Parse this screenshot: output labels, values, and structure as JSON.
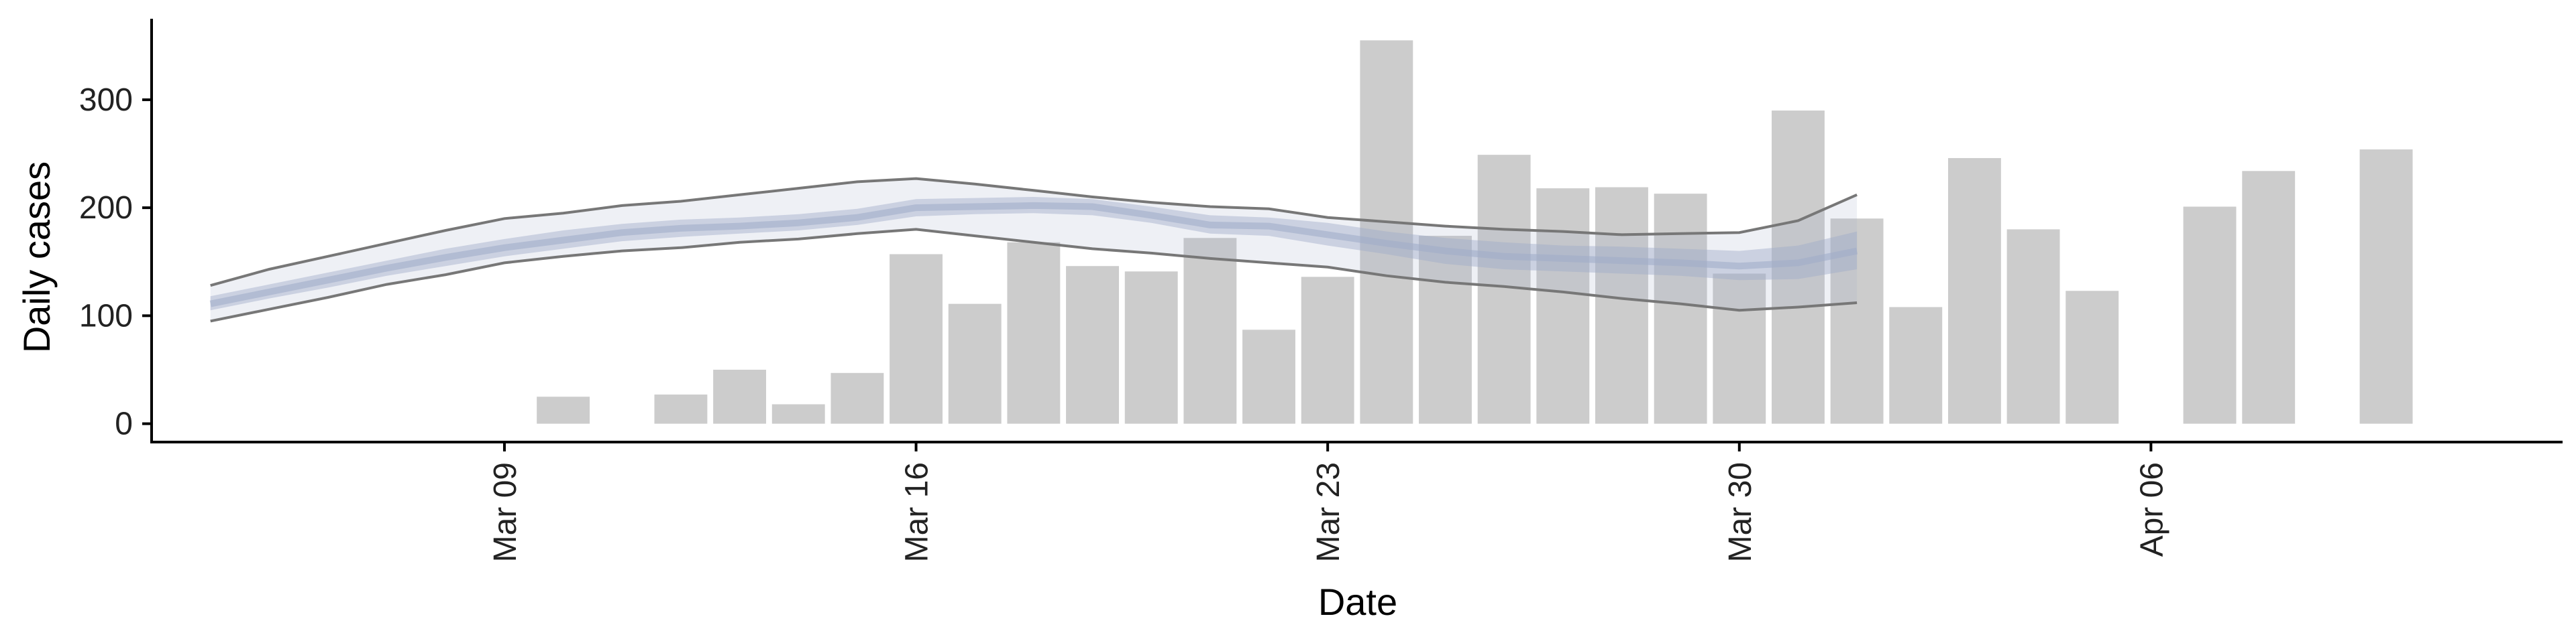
{
  "chart_data": {
    "type": "bar",
    "xlabel": "Date",
    "ylabel": "Daily cases",
    "ylim": [
      -17,
      375
    ],
    "grid": false,
    "legend": "none",
    "y_ticks": [
      0,
      100,
      200,
      300
    ],
    "x_ticks": [
      {
        "date": "2020-03-09",
        "label": "Mar 09"
      },
      {
        "date": "2020-03-16",
        "label": "Mar 16"
      },
      {
        "date": "2020-03-23",
        "label": "Mar 23"
      },
      {
        "date": "2020-03-30",
        "label": "Mar 30"
      },
      {
        "date": "2020-04-06",
        "label": "Apr 06"
      }
    ],
    "xlim": [
      "2020-03-03",
      "2020-04-13"
    ],
    "bars": {
      "name": "Daily cases",
      "color": "#cccccc",
      "data": [
        {
          "date": "2020-03-10",
          "value": 25
        },
        {
          "date": "2020-03-12",
          "value": 27
        },
        {
          "date": "2020-03-13",
          "value": 50
        },
        {
          "date": "2020-03-14",
          "value": 18
        },
        {
          "date": "2020-03-15",
          "value": 47
        },
        {
          "date": "2020-03-16",
          "value": 157
        },
        {
          "date": "2020-03-17",
          "value": 111
        },
        {
          "date": "2020-03-18",
          "value": 168
        },
        {
          "date": "2020-03-19",
          "value": 146
        },
        {
          "date": "2020-03-20",
          "value": 141
        },
        {
          "date": "2020-03-21",
          "value": 172
        },
        {
          "date": "2020-03-22",
          "value": 87
        },
        {
          "date": "2020-03-23",
          "value": 136
        },
        {
          "date": "2020-03-24",
          "value": 355
        },
        {
          "date": "2020-03-25",
          "value": 174
        },
        {
          "date": "2020-03-26",
          "value": 249
        },
        {
          "date": "2020-03-27",
          "value": 218
        },
        {
          "date": "2020-03-28",
          "value": 219
        },
        {
          "date": "2020-03-29",
          "value": 213
        },
        {
          "date": "2020-03-30",
          "value": 139
        },
        {
          "date": "2020-03-31",
          "value": 290
        },
        {
          "date": "2020-04-01",
          "value": 190
        },
        {
          "date": "2020-04-02",
          "value": 108
        },
        {
          "date": "2020-04-03",
          "value": 246
        },
        {
          "date": "2020-04-04",
          "value": 180
        },
        {
          "date": "2020-04-05",
          "value": 123
        },
        {
          "date": "2020-04-07",
          "value": 201
        },
        {
          "date": "2020-04-08",
          "value": 234
        },
        {
          "date": "2020-04-10",
          "value": 254
        }
      ]
    },
    "estimate": {
      "color": "#9fabc9",
      "x": [
        "2020-03-04",
        "2020-03-05",
        "2020-03-06",
        "2020-03-07",
        "2020-03-08",
        "2020-03-09",
        "2020-03-10",
        "2020-03-11",
        "2020-03-12",
        "2020-03-13",
        "2020-03-14",
        "2020-03-15",
        "2020-03-16",
        "2020-03-17",
        "2020-03-18",
        "2020-03-19",
        "2020-03-20",
        "2020-03-21",
        "2020-03-22",
        "2020-03-23",
        "2020-03-24",
        "2020-03-25",
        "2020-03-26",
        "2020-03-27",
        "2020-03-28",
        "2020-03-29",
        "2020-03-30",
        "2020-03-31",
        "2020-04-01"
      ],
      "median": [
        111,
        122,
        133,
        144,
        154,
        163,
        170,
        177,
        181,
        183,
        186,
        191,
        200,
        201,
        202,
        201,
        193,
        184,
        183,
        175,
        167,
        160,
        155,
        153,
        151,
        149,
        146,
        149,
        160
      ],
      "inner_lower": [
        105,
        116,
        126,
        137,
        146,
        155,
        162,
        169,
        173,
        176,
        179,
        184,
        192,
        194,
        195,
        193,
        186,
        176,
        174,
        165,
        157,
        148,
        143,
        141,
        139,
        137,
        133,
        134,
        143
      ],
      "inner_upper": [
        118,
        129,
        140,
        151,
        162,
        171,
        179,
        185,
        189,
        191,
        194,
        199,
        208,
        209,
        210,
        208,
        201,
        193,
        191,
        186,
        178,
        172,
        168,
        165,
        164,
        162,
        160,
        165,
        178
      ],
      "outer_lower": [
        95,
        106,
        117,
        129,
        138,
        149,
        155,
        160,
        163,
        168,
        171,
        176,
        180,
        174,
        168,
        162,
        158,
        153,
        149,
        145,
        137,
        131,
        127,
        122,
        116,
        111,
        105,
        108,
        112
      ],
      "outer_upper": [
        128,
        143,
        155,
        167,
        179,
        190,
        195,
        202,
        206,
        212,
        218,
        224,
        227,
        222,
        216,
        210,
        205,
        201,
        199,
        191,
        187,
        183,
        180,
        178,
        175,
        176,
        177,
        188,
        212
      ]
    }
  }
}
